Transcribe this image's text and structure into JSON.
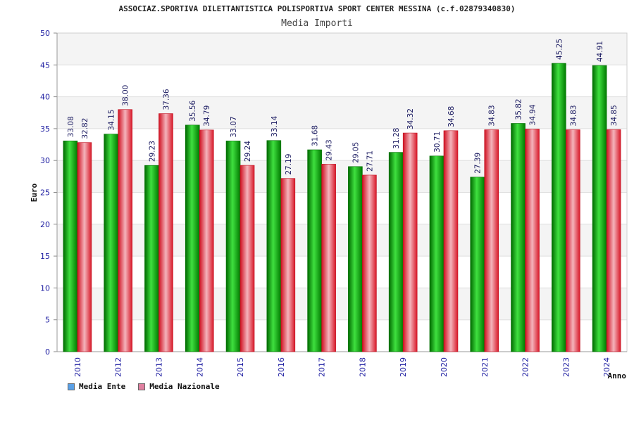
{
  "title": "ASSOCIAZ.SPORTIVA DILETTANTISTICA POLISPORTIVA SPORT CENTER MESSINA (c.f.02879340830)",
  "subtitle": "Media Importi",
  "colors": {
    "series_ente": "#00b000",
    "series_nazionale": "#e8343c",
    "legend_ente": "#5aa0e6",
    "legend_nazionale": "#e080a0",
    "tick_label": "#1a1aa0",
    "data_label": "#1a1a60"
  },
  "chart_data": {
    "type": "bar",
    "title": "Media Importi",
    "xlabel": "Anno",
    "ylabel": "Euro",
    "ylim": [
      0,
      50
    ],
    "yticks": [
      0,
      5,
      10,
      15,
      20,
      25,
      30,
      35,
      40,
      45,
      50
    ],
    "grid": true,
    "legend_position": "bottom-left",
    "categories": [
      "2010",
      "2012",
      "2013",
      "2014",
      "2015",
      "2016",
      "2017",
      "2018",
      "2019",
      "2020",
      "2021",
      "2022",
      "2023",
      "2024"
    ],
    "series": [
      {
        "name": "Media Ente",
        "values": [
          33.08,
          34.15,
          29.23,
          35.56,
          33.07,
          33.14,
          31.68,
          29.05,
          31.28,
          30.71,
          27.39,
          35.82,
          45.25,
          44.91
        ]
      },
      {
        "name": "Media Nazionale",
        "values": [
          32.82,
          38.0,
          37.36,
          34.79,
          29.24,
          27.19,
          29.43,
          27.71,
          34.32,
          34.68,
          34.83,
          34.94,
          34.83,
          34.85
        ]
      }
    ]
  }
}
